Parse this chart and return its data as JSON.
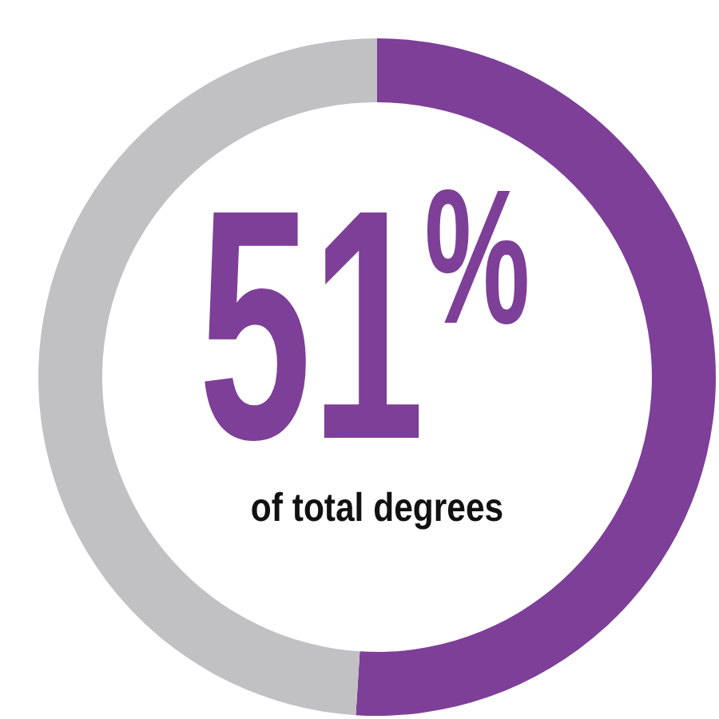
{
  "chart_data": {
    "type": "donut",
    "categories": [
      null,
      null
    ],
    "values": [
      51,
      49
    ],
    "colors": [
      "#7d3f97",
      "#c1c1c3"
    ],
    "value_labels": [
      "51$^{%}$",
      null
    ],
    "annotations": [
      "of total degrees"
    ]
  }
}
